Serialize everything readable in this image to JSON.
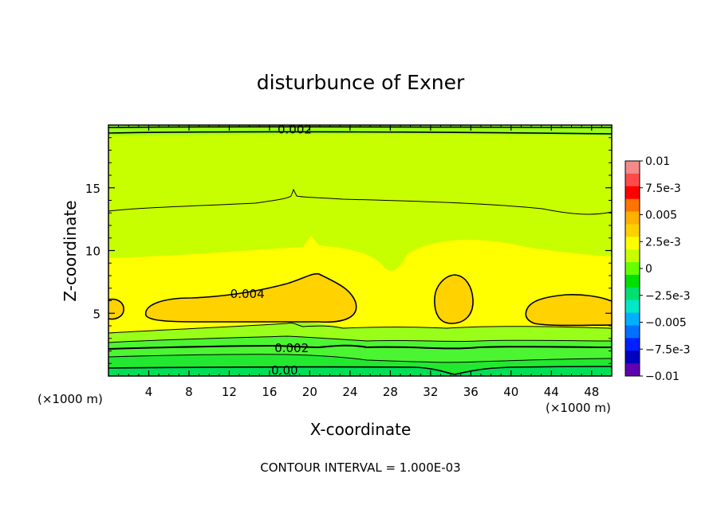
{
  "chart_data": {
    "type": "contour",
    "title": "disturbunce of Exner",
    "xlabel": "X-coordinate",
    "ylabel": "Z-coordinate",
    "x_unit": "(×1000 m)",
    "x_unit_right": "(×1000 m)",
    "footer": "CONTOUR INTERVAL = 1.000E-03",
    "xlim": [
      0,
      50
    ],
    "ylim": [
      0,
      20
    ],
    "x_ticks": [
      4,
      8,
      12,
      16,
      20,
      24,
      28,
      32,
      36,
      40,
      44,
      48
    ],
    "y_ticks": [
      5,
      10,
      15
    ],
    "contour_interval": 0.001,
    "contour_labels": [
      {
        "text": "0.002",
        "x": 18.5,
        "z": 19.7
      },
      {
        "text": "0.004",
        "x": 13.8,
        "z": 6.6
      },
      {
        "text": "0.002",
        "x": 18.2,
        "z": 2.3
      },
      {
        "text": "0.00",
        "x": 17.5,
        "z": 0.5
      }
    ],
    "colorbar": {
      "labels": [
        "0.01",
        "7.5e-3",
        "0.005",
        "2.5e-3",
        "0",
        "−2.5e-3",
        "−0.005",
        "−7.5e-3",
        "−0.01"
      ],
      "values": [
        0.01,
        0.0075,
        0.005,
        0.0025,
        0,
        -0.0025,
        -0.005,
        -0.0075,
        -0.01
      ],
      "colors_top_to_bottom": [
        "#f58a8a",
        "#ff4a4a",
        "#ff0000",
        "#ff7400",
        "#ffb000",
        "#ffd000",
        "#ffff00",
        "#c8ff00",
        "#66ff00",
        "#00e000",
        "#00e070",
        "#00e8c8",
        "#00b0ff",
        "#0070ff",
        "#0020ff",
        "#0000c0",
        "#6000b0"
      ]
    },
    "fill_colors": {
      "top": "#99ff19",
      "upper": "#c8ff00",
      "middle": "#ffff00",
      "max": "#ffd200",
      "low1": "#99ff19",
      "low2": "#4cf532",
      "low3": "#22e830",
      "bottom": "#00e056"
    }
  }
}
